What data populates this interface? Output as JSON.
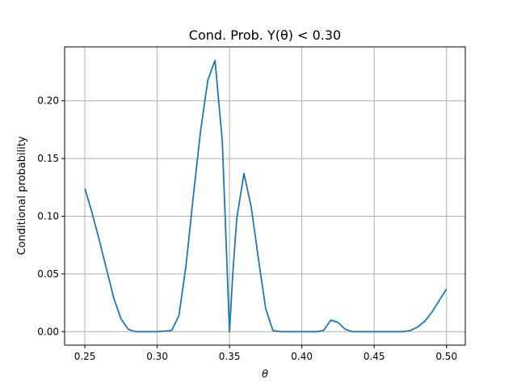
{
  "chart_data": {
    "type": "line",
    "title": "Cond. Prob. Y(θ) < 0.30",
    "xlabel": "θ",
    "ylabel": "Conditional probability",
    "xlim": [
      0.236,
      0.513
    ],
    "ylim": [
      -0.0117,
      0.2467
    ],
    "xticks": [
      0.25,
      0.3,
      0.35,
      0.4,
      0.45,
      0.5
    ],
    "xtick_labels": [
      "0.25",
      "0.30",
      "0.35",
      "0.40",
      "0.45",
      "0.50"
    ],
    "yticks": [
      0.0,
      0.05,
      0.1,
      0.15,
      0.2
    ],
    "ytick_labels": [
      "0.00",
      "0.05",
      "0.10",
      "0.15",
      "0.20"
    ],
    "grid": true,
    "line_color": "#1f77b4",
    "series": [
      {
        "x": [
          0.25,
          0.255,
          0.26,
          0.265,
          0.27,
          0.275,
          0.28,
          0.285,
          0.29,
          0.295,
          0.3,
          0.305,
          0.31,
          0.315,
          0.32,
          0.325,
          0.33,
          0.335,
          0.34,
          0.345,
          0.35,
          0.3525,
          0.355,
          0.36,
          0.365,
          0.37,
          0.375,
          0.38,
          0.385,
          0.39,
          0.395,
          0.4,
          0.405,
          0.41,
          0.415,
          0.42,
          0.425,
          0.43,
          0.435,
          0.44,
          0.445,
          0.45,
          0.455,
          0.46,
          0.465,
          0.47,
          0.475,
          0.48,
          0.485,
          0.49,
          0.495,
          0.5
        ],
        "y": [
          0.124,
          0.103,
          0.079,
          0.054,
          0.029,
          0.011,
          0.002,
          0.0,
          0.0,
          0.0,
          0.0,
          0.0005,
          0.001,
          0.014,
          0.058,
          0.118,
          0.174,
          0.218,
          0.235,
          0.165,
          0.0,
          0.055,
          0.098,
          0.137,
          0.108,
          0.063,
          0.02,
          0.001,
          0.0,
          0.0,
          0.0,
          0.0,
          0.0,
          0.0,
          0.001,
          0.01,
          0.008,
          0.002,
          0.0,
          0.0,
          0.0,
          0.0,
          0.0,
          0.0,
          0.0,
          0.0,
          0.001,
          0.004,
          0.009,
          0.017,
          0.027,
          0.037
        ]
      }
    ]
  }
}
